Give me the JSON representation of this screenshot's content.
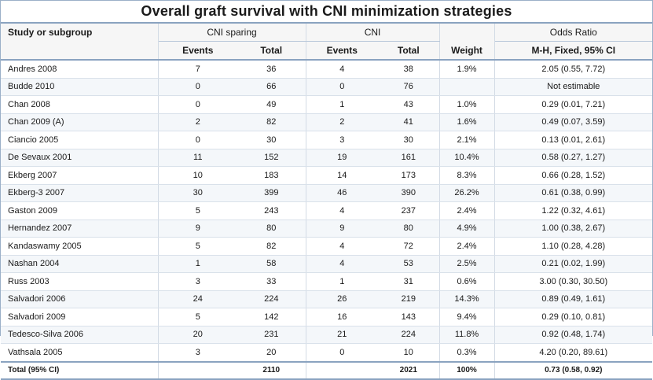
{
  "title": "Overall graft survival with CNI minimization strategies",
  "header": {
    "study": "Study or subgroup",
    "group1": "CNI sparing",
    "group2": "CNI",
    "odds_ratio": "Odds Ratio",
    "events": "Events",
    "total": "Total",
    "weight": "Weight",
    "method": "M-H, Fixed, 95% CI"
  },
  "rows": [
    {
      "study": "Andres 2008",
      "e1": "7",
      "t1": "36",
      "e2": "4",
      "t2": "38",
      "weight": "1.9%",
      "or": "2.05 (0.55, 7.72)"
    },
    {
      "study": "Budde 2010",
      "e1": "0",
      "t1": "66",
      "e2": "0",
      "t2": "76",
      "weight": "",
      "or": "Not estimable"
    },
    {
      "study": "Chan 2008",
      "e1": "0",
      "t1": "49",
      "e2": "1",
      "t2": "43",
      "weight": "1.0%",
      "or": "0.29 (0.01, 7.21)"
    },
    {
      "study": "Chan 2009 (A)",
      "e1": "2",
      "t1": "82",
      "e2": "2",
      "t2": "41",
      "weight": "1.6%",
      "or": "0.49 (0.07, 3.59)"
    },
    {
      "study": "Ciancio 2005",
      "e1": "0",
      "t1": "30",
      "e2": "3",
      "t2": "30",
      "weight": "2.1%",
      "or": "0.13 (0.01, 2.61)"
    },
    {
      "study": "De Sevaux 2001",
      "e1": "11",
      "t1": "152",
      "e2": "19",
      "t2": "161",
      "weight": "10.4%",
      "or": "0.58 (0.27, 1.27)"
    },
    {
      "study": "Ekberg 2007",
      "e1": "10",
      "t1": "183",
      "e2": "14",
      "t2": "173",
      "weight": "8.3%",
      "or": "0.66 (0.28, 1.52)"
    },
    {
      "study": "Ekberg-3 2007",
      "e1": "30",
      "t1": "399",
      "e2": "46",
      "t2": "390",
      "weight": "26.2%",
      "or": "0.61 (0.38, 0.99)"
    },
    {
      "study": "Gaston 2009",
      "e1": "5",
      "t1": "243",
      "e2": "4",
      "t2": "237",
      "weight": "2.4%",
      "or": "1.22 (0.32, 4.61)"
    },
    {
      "study": "Hernandez 2007",
      "e1": "9",
      "t1": "80",
      "e2": "9",
      "t2": "80",
      "weight": "4.9%",
      "or": "1.00 (0.38, 2.67)"
    },
    {
      "study": "Kandaswamy 2005",
      "e1": "5",
      "t1": "82",
      "e2": "4",
      "t2": "72",
      "weight": "2.4%",
      "or": "1.10 (0.28, 4.28)"
    },
    {
      "study": "Nashan 2004",
      "e1": "1",
      "t1": "58",
      "e2": "4",
      "t2": "53",
      "weight": "2.5%",
      "or": "0.21 (0.02, 1.99)"
    },
    {
      "study": "Russ 2003",
      "e1": "3",
      "t1": "33",
      "e2": "1",
      "t2": "31",
      "weight": "0.6%",
      "or": "3.00 (0.30, 30.50)"
    },
    {
      "study": "Salvadori 2006",
      "e1": "24",
      "t1": "224",
      "e2": "26",
      "t2": "219",
      "weight": "14.3%",
      "or": "0.89 (0.49, 1.61)"
    },
    {
      "study": "Salvadori 2009",
      "e1": "5",
      "t1": "142",
      "e2": "16",
      "t2": "143",
      "weight": "9.4%",
      "or": "0.29 (0.10, 0.81)"
    },
    {
      "study": "Tedesco-Silva 2006",
      "e1": "20",
      "t1": "231",
      "e2": "21",
      "t2": "224",
      "weight": "11.8%",
      "or": "0.92 (0.48, 1.74)"
    },
    {
      "study": "Vathsala 2005",
      "e1": "3",
      "t1": "20",
      "e2": "0",
      "t2": "10",
      "weight": "0.3%",
      "or": "4.20 (0.20, 89.61)"
    }
  ],
  "total": {
    "study": "Total (95% CI)",
    "t1": "2110",
    "t2": "2021",
    "weight": "100%",
    "or": "0.73 (0.58, 0.92)"
  }
}
